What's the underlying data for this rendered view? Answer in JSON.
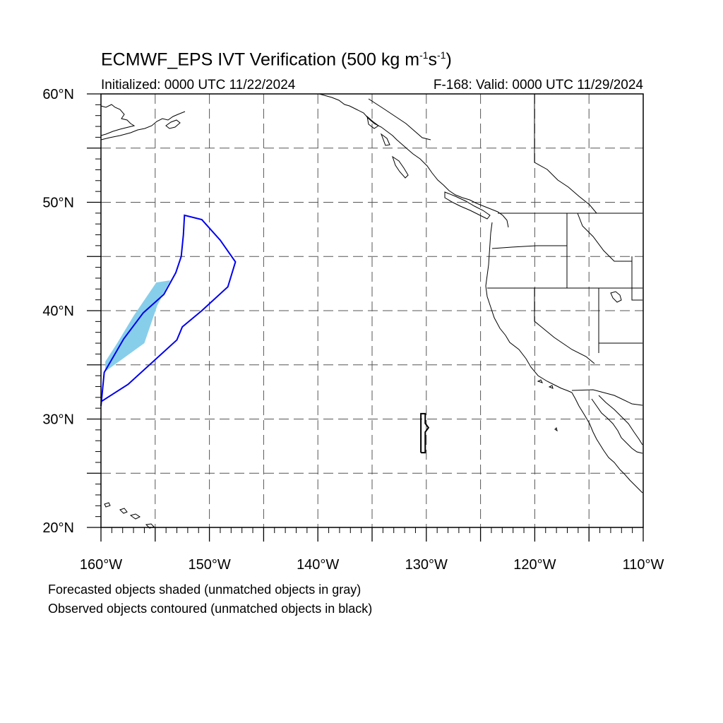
{
  "title": {
    "main": "ECMWF_EPS IVT Verification (500 kg m",
    "sup1": "-1",
    "mid": "s",
    "sup2": "-1",
    "end": ")"
  },
  "subtitle_left": "Initialized: 0000 UTC 11/22/2024",
  "subtitle_right": "F-168: Valid: 0000 UTC 11/29/2024",
  "axes": {
    "lon_range": [
      -160,
      -110
    ],
    "lat_range": [
      20,
      60
    ],
    "lon_labels": [
      "160°W",
      "150°W",
      "140°W",
      "130°W",
      "120°W",
      "110°W"
    ],
    "lat_labels": [
      "60°N",
      "50°N",
      "40°N",
      "30°N",
      "20°N"
    ],
    "grid": "dashed, every 5 degrees"
  },
  "notes": [
    "Forecasted objects shaded (unmatched objects in gray)",
    "Observed objects contoured (unmatched objects in black)"
  ],
  "colors": {
    "forecast_object": "#87ceeb",
    "observed_matched": "#0000ee",
    "observed_unmatched": "#000000",
    "coastline": "#000000",
    "grid": "#555555"
  },
  "map_features": {
    "forecast_object": {
      "description_lonlat": [
        [
          -159.6,
          34.4
        ],
        [
          -156.0,
          37.0
        ],
        [
          -154.8,
          40.5
        ],
        [
          -153.6,
          42.8
        ],
        [
          -154.9,
          42.6
        ],
        [
          -157.0,
          39.5
        ],
        [
          -158.5,
          37.0
        ],
        [
          -159.6,
          35.3
        ]
      ]
    },
    "observed_objects": [
      {
        "matched": true,
        "lonlat": [
          [
            -160,
            31.6
          ],
          [
            -157.5,
            33.2
          ],
          [
            -153,
            37.3
          ],
          [
            -152.5,
            38.5
          ],
          [
            -150.7,
            40
          ],
          [
            -148.3,
            42.2
          ],
          [
            -147.6,
            44.5
          ],
          [
            -149,
            46.5
          ],
          [
            -150.7,
            48.4
          ],
          [
            -152.3,
            48.8
          ],
          [
            -152.4,
            47
          ],
          [
            -152.6,
            45
          ],
          [
            -153.1,
            43.5
          ],
          [
            -154.2,
            41.5
          ],
          [
            -156.1,
            39.8
          ],
          [
            -157.9,
            37.4
          ],
          [
            -159.7,
            34.3
          ],
          [
            -160,
            31.2
          ]
        ]
      },
      {
        "matched": false,
        "lonlat": [
          [
            -130.5,
            26.9
          ],
          [
            -130.1,
            26.9
          ],
          [
            -130.1,
            28.8
          ],
          [
            -129.8,
            29.2
          ],
          [
            -130.1,
            29.6
          ],
          [
            -130.1,
            30.5
          ],
          [
            -130.5,
            30.5
          ],
          [
            -130.5,
            26.9
          ]
        ]
      }
    ]
  }
}
